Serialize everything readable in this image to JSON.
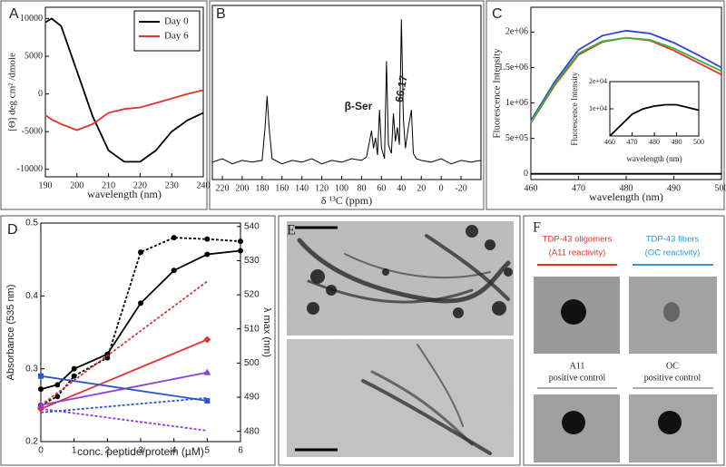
{
  "chart_data": [
    {
      "type": "line",
      "panel_label": "A",
      "xlabel": "wavelength (nm)",
      "ylabel": "[Θ]  deg cm² /dmole",
      "x": [
        190,
        192,
        195,
        200,
        205,
        210,
        215,
        220,
        225,
        230,
        235,
        240
      ],
      "xlim": [
        190,
        240
      ],
      "xticks": [
        190,
        200,
        210,
        220,
        230,
        240
      ],
      "ylim": [
        -11000,
        11500
      ],
      "yticks": [
        -10000,
        -5000,
        0,
        5000,
        10000
      ],
      "legend": "upper right",
      "series": [
        {
          "name": "Day 0",
          "color": "#000000",
          "values": [
            9500,
            10000,
            9000,
            3000,
            -3000,
            -7500,
            -9000,
            -9000,
            -7500,
            -5000,
            -3500,
            -2500
          ]
        },
        {
          "name": "Day 6",
          "color": "#e8302a",
          "values": [
            -2800,
            -3400,
            -4000,
            -4800,
            -4000,
            -2500,
            -2000,
            -1800,
            -1200,
            -600,
            0,
            500
          ]
        }
      ]
    },
    {
      "type": "line",
      "panel_label": "B",
      "xlabel": "δ ¹³C (ppm)",
      "x": [
        230,
        220,
        210,
        200,
        190,
        180,
        177,
        175,
        173,
        170,
        160,
        150,
        140,
        130,
        120,
        110,
        100,
        90,
        80,
        75,
        72,
        70,
        68,
        66,
        64,
        62,
        60,
        57,
        55,
        53,
        50,
        48,
        46,
        44,
        42,
        40,
        38,
        36,
        33,
        30,
        28,
        25,
        20,
        10,
        0,
        -10,
        -20,
        -30,
        -40
      ],
      "xlim": [
        230,
        -40
      ],
      "xticks": [
        220,
        200,
        180,
        160,
        140,
        120,
        100,
        80,
        60,
        40,
        20,
        0,
        -20
      ],
      "ylim": [
        0,
        100
      ],
      "annotations": [
        {
          "text": "β-Ser"
        },
        {
          "text": "66.17"
        }
      ],
      "series": [
        {
          "color": "#000000",
          "values": [
            10,
            12,
            9,
            11,
            10,
            11,
            30,
            48,
            30,
            12,
            9,
            11,
            10,
            12,
            9,
            11,
            10,
            12,
            11,
            13,
            22,
            28,
            18,
            24,
            14,
            40,
            18,
            12,
            68,
            20,
            15,
            38,
            22,
            30,
            20,
            92,
            35,
            18,
            30,
            40,
            15,
            12,
            11,
            10,
            12,
            9,
            11,
            10,
            11
          ]
        }
      ]
    },
    {
      "type": "line",
      "panel_label": "C",
      "xlabel": "wavelength (nm)",
      "ylabel": "Fluorescence Intensity",
      "x": [
        460,
        465,
        470,
        475,
        480,
        485,
        490,
        495,
        500
      ],
      "xlim": [
        460,
        500
      ],
      "xticks": [
        460,
        470,
        480,
        490,
        500
      ],
      "ylim": [
        -80000,
        2350000
      ],
      "yticks": [
        0,
        {
          "value": 500000,
          "label": "5e+05"
        },
        {
          "value": 1000000,
          "label": "1e+06"
        },
        {
          "value": 1500000,
          "label": "1.5e+06"
        },
        {
          "value": 2000000,
          "label": "2e+06"
        }
      ],
      "series": [
        {
          "color": "#2e3fe0",
          "values": [
            750000,
            1300000,
            1750000,
            1950000,
            2020000,
            1980000,
            1850000,
            1680000,
            1500000
          ]
        },
        {
          "color": "#e8302a",
          "values": [
            720000,
            1250000,
            1680000,
            1860000,
            1920000,
            1880000,
            1740000,
            1570000,
            1400000
          ]
        },
        {
          "color": "#2fb83a",
          "values": [
            730000,
            1270000,
            1700000,
            1870000,
            1920000,
            1890000,
            1770000,
            1610000,
            1450000
          ]
        },
        {
          "color": "#000000",
          "values": [
            0,
            0,
            0,
            0,
            0,
            0,
            0,
            0,
            0
          ]
        }
      ]
    },
    {
      "type": "line",
      "xlabel": "wavelength (nm)",
      "ylabel": "Fluorescence Intensity",
      "x": [
        460,
        465,
        470,
        475,
        480,
        485,
        490,
        495,
        500
      ],
      "xlim": [
        460,
        500
      ],
      "xticks": [
        460,
        470,
        480,
        490,
        500
      ],
      "ylim": [
        0,
        20000
      ],
      "yticks": [
        {
          "value": 10000,
          "label": "1e+04"
        },
        {
          "value": 20000,
          "label": "2e+04"
        }
      ],
      "series": [
        {
          "color": "#000000",
          "values": [
            0,
            4000,
            8000,
            10000,
            11000,
            11500,
            11500,
            10500,
            9500
          ]
        }
      ]
    },
    {
      "type": "line",
      "panel_label": "D",
      "xlabel": "conc. peptide/protein (µM)",
      "ylabel": "Absorbance (535 nm)",
      "y2label": "λ max (nm)",
      "xlim": [
        0,
        6
      ],
      "xticks": [
        0,
        1,
        2,
        3,
        4,
        5,
        6
      ],
      "ylim": [
        0.2,
        0.5
      ],
      "yticks": [
        0.2,
        0.3,
        0.4,
        0.5
      ],
      "y2lim": [
        477,
        541
      ],
      "y2ticks": [
        480,
        490,
        500,
        510,
        520,
        530,
        540
      ],
      "series": [
        {
          "color": "#000000",
          "style": "solid",
          "marker": "circle",
          "x": [
            0,
            0.5,
            1,
            2,
            3,
            4,
            5,
            6
          ],
          "values": [
            0.272,
            0.278,
            0.3,
            0.32,
            0.39,
            0.435,
            0.457,
            0.462
          ]
        },
        {
          "color": "#000000",
          "style": "dotted",
          "marker": "circle",
          "x": [
            0,
            0.5,
            1,
            2,
            3,
            4,
            5,
            6
          ],
          "values": [
            0.25,
            0.262,
            0.29,
            0.315,
            0.46,
            0.48,
            0.478,
            0.475
          ]
        },
        {
          "color": "#e8302a",
          "style": "solid",
          "marker": "diamond",
          "x": [
            0,
            5
          ],
          "values": [
            0.245,
            0.34
          ]
        },
        {
          "color": "#e8302a",
          "style": "dotted",
          "marker": "none",
          "x": [
            0,
            5
          ],
          "values": [
            0.25,
            0.42
          ]
        },
        {
          "color": "#8a3fe0",
          "style": "solid",
          "marker": "triangle",
          "x": [
            0,
            5
          ],
          "values": [
            0.25,
            0.295
          ]
        },
        {
          "color": "#8a3fe0",
          "style": "dotted",
          "marker": "none",
          "x": [
            0,
            5
          ],
          "values": [
            0.245,
            0.215
          ]
        },
        {
          "color": "#2a55d0",
          "style": "solid",
          "marker": "square",
          "x": [
            0,
            5
          ],
          "values": [
            0.29,
            0.256
          ]
        },
        {
          "color": "#2a55d0",
          "style": "dotted",
          "marker": "none",
          "x": [
            0,
            5
          ],
          "values": [
            0.24,
            0.26
          ]
        }
      ]
    }
  ],
  "panels": {
    "E": {
      "label": "E"
    },
    "F": {
      "label": "F",
      "columns": [
        {
          "title": "TDP-43 oligomers",
          "subtitle": "(A11 reactivity)"
        },
        {
          "title": "TDP-43 fibers",
          "subtitle": "(OC reactivity)"
        }
      ],
      "controls": [
        {
          "name": "A11",
          "caption": "positive control"
        },
        {
          "name": "OC",
          "caption": "positive control"
        }
      ]
    }
  }
}
